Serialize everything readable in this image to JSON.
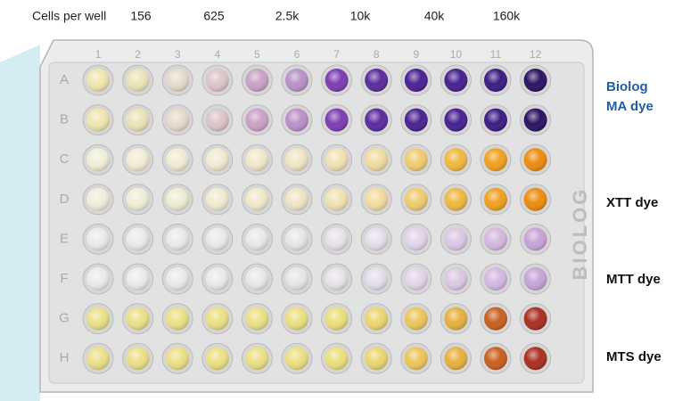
{
  "header": {
    "label": "Cells per well",
    "columns": [
      "156",
      "625",
      "2.5k",
      "10k",
      "40k",
      "160k"
    ]
  },
  "plate": {
    "columns": [
      "1",
      "2",
      "3",
      "4",
      "5",
      "6",
      "7",
      "8",
      "9",
      "10",
      "11",
      "12"
    ],
    "rows": [
      "A",
      "B",
      "C",
      "D",
      "E",
      "F",
      "G",
      "H"
    ],
    "brand": "BIOLOG"
  },
  "dyes": [
    {
      "lines": [
        "Biolog",
        "MA dye"
      ]
    },
    {
      "lines": [
        "XTT dye"
      ]
    },
    {
      "lines": [
        "MTT dye"
      ]
    },
    {
      "lines": [
        "MTS dye"
      ]
    }
  ]
}
